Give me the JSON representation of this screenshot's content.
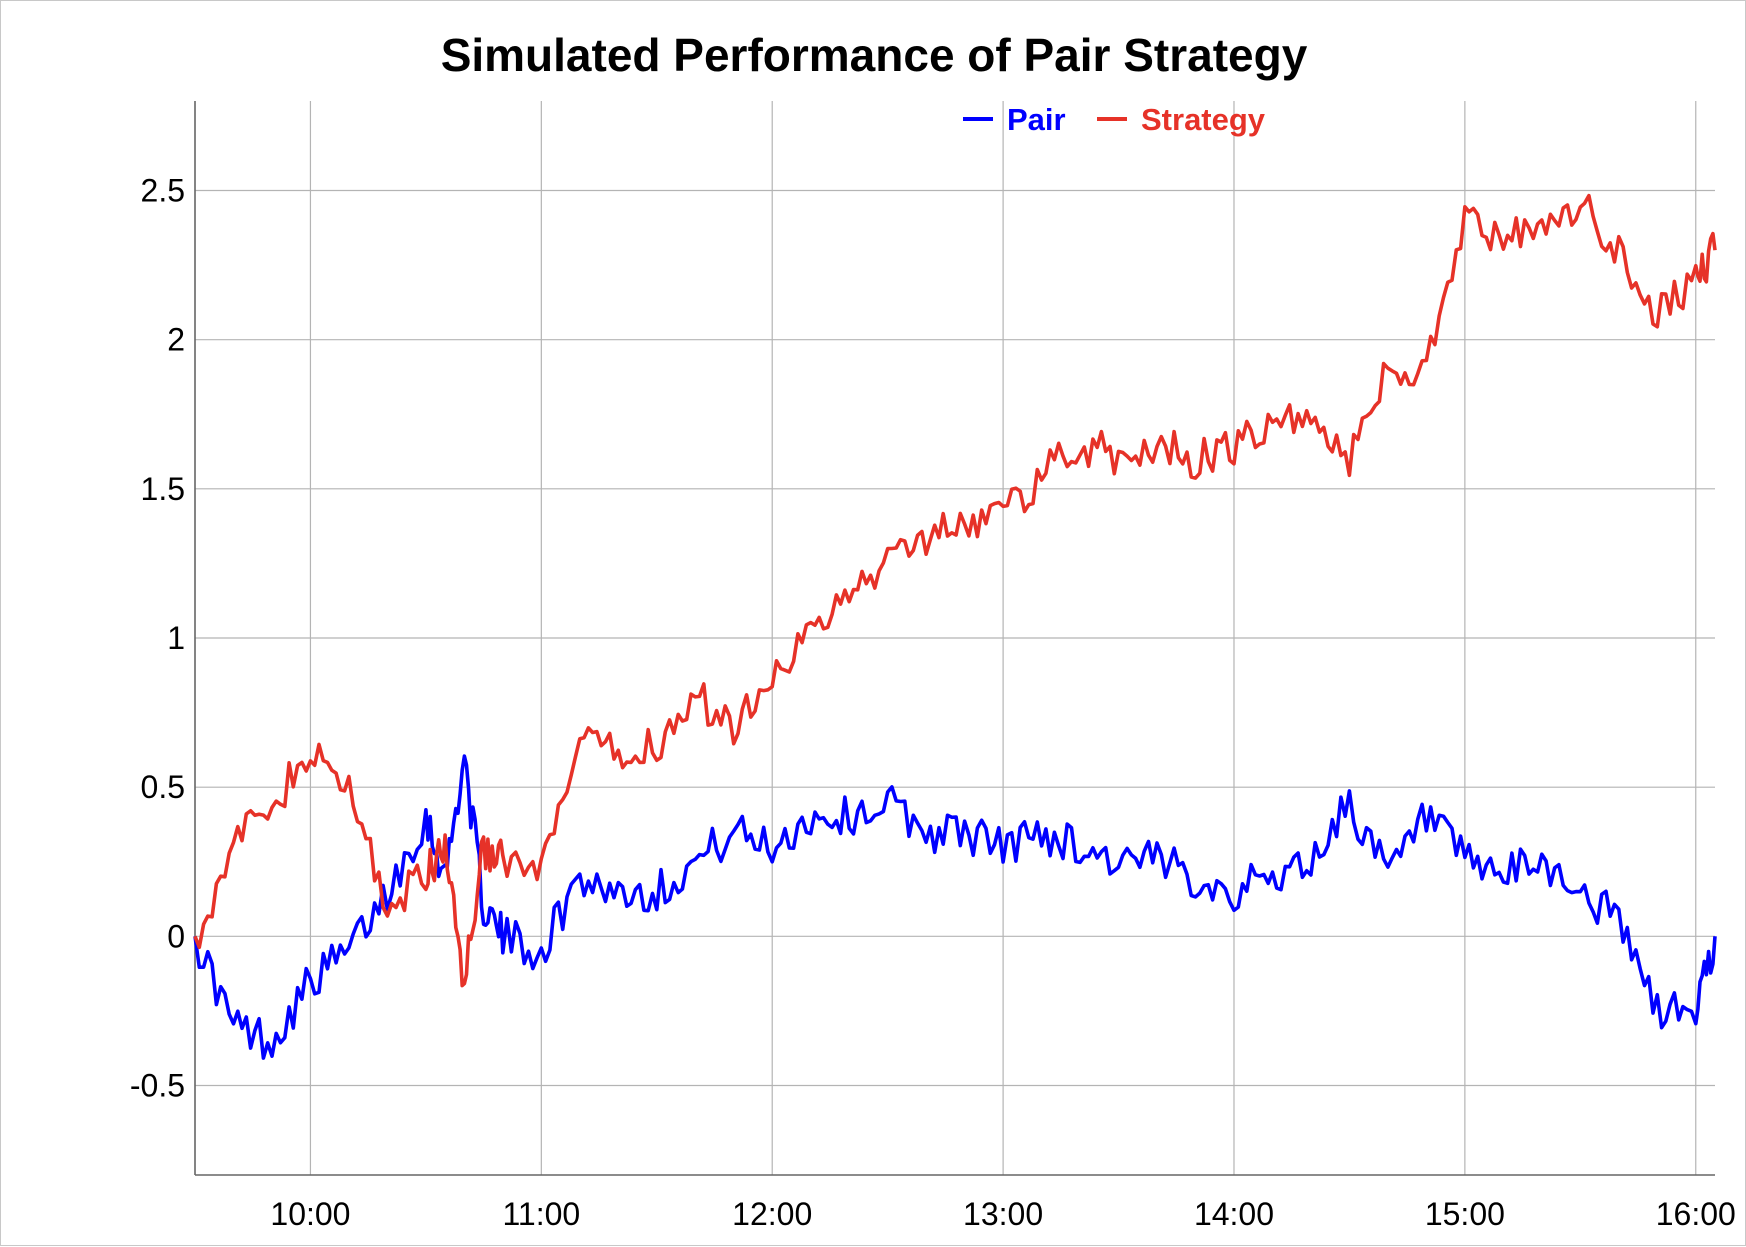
{
  "chart_data": {
    "type": "line",
    "title": "Simulated Performance of Pair Strategy",
    "xlabel": "",
    "ylabel": "",
    "x_axis": {
      "kind": "time",
      "range": [
        "09:30",
        "16:05"
      ],
      "ticks": [
        "10:00",
        "11:00",
        "12:00",
        "13:00",
        "14:00",
        "15:00",
        "16:00"
      ]
    },
    "y_axis": {
      "range": [
        -0.8,
        2.8
      ],
      "ticks": [
        "-0.5",
        "0",
        "0.5",
        "1",
        "1.5",
        "2",
        "2.5"
      ]
    },
    "grid": true,
    "legend": {
      "placement": "top-right",
      "entries": [
        "Pair",
        "Strategy"
      ]
    },
    "x": [
      "09:30",
      "09:40",
      "09:50",
      "10:00",
      "10:10",
      "10:20",
      "10:30",
      "10:35",
      "10:40",
      "10:45",
      "10:50",
      "11:00",
      "11:10",
      "11:20",
      "11:30",
      "11:40",
      "11:50",
      "12:00",
      "12:10",
      "12:20",
      "12:30",
      "12:40",
      "12:50",
      "13:00",
      "13:10",
      "13:20",
      "13:30",
      "13:40",
      "13:50",
      "14:00",
      "14:10",
      "14:20",
      "14:30",
      "14:40",
      "14:50",
      "15:00",
      "15:10",
      "15:20",
      "15:30",
      "15:40",
      "15:50",
      "16:00",
      "16:05"
    ],
    "series": [
      {
        "name": "Pair",
        "color": "#0000ff",
        "values": [
          0.0,
          -0.3,
          -0.35,
          -0.15,
          -0.05,
          0.15,
          0.4,
          0.2,
          0.6,
          0.1,
          0.0,
          -0.05,
          0.2,
          0.15,
          0.15,
          0.25,
          0.35,
          0.3,
          0.4,
          0.4,
          0.45,
          0.35,
          0.35,
          0.3,
          0.35,
          0.3,
          0.25,
          0.25,
          0.2,
          0.15,
          0.2,
          0.25,
          0.45,
          0.2,
          0.4,
          0.25,
          0.2,
          0.25,
          0.15,
          0.05,
          -0.25,
          -0.25,
          0.0
        ]
      },
      {
        "name": "Strategy",
        "color": "#e63228",
        "values": [
          0.0,
          0.3,
          0.45,
          0.6,
          0.5,
          0.1,
          0.2,
          0.3,
          -0.15,
          0.3,
          0.25,
          0.2,
          0.65,
          0.6,
          0.65,
          0.8,
          0.7,
          0.9,
          1.0,
          1.15,
          1.25,
          1.35,
          1.4,
          1.4,
          1.55,
          1.65,
          1.6,
          1.65,
          1.6,
          1.65,
          1.7,
          1.75,
          1.6,
          1.9,
          1.9,
          2.4,
          2.35,
          2.35,
          2.45,
          2.3,
          2.1,
          2.2,
          2.3
        ]
      }
    ]
  }
}
